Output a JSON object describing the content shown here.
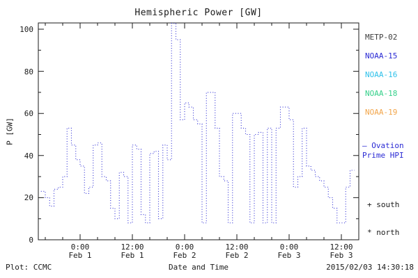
{
  "window": {
    "background": "#ffffff"
  },
  "chart": {
    "title": "Hemispheric Power [GW]",
    "ylabel": "P [GW]",
    "xlabel": "Date and Time",
    "footer_left": "Plot: CCMC",
    "footer_right": "2015/02/03 14:30:18"
  },
  "legend": {
    "items": [
      {
        "label": "METP-02",
        "color": "#3d3d3d"
      },
      {
        "label": "NOAA-15",
        "color": "#2a2ad4"
      },
      {
        "label": "NOAA-16",
        "color": "#2fc1ea"
      },
      {
        "label": "NOAA-18",
        "color": "#35d08a"
      },
      {
        "label": "NOAA-19",
        "color": "#f2a54a"
      }
    ],
    "ovation": {
      "sample": "—",
      "line1": "Ovation",
      "line2": "Prime HPI",
      "color": "#2a2ad4"
    },
    "markers": [
      {
        "symbol": "+",
        "label": "south"
      },
      {
        "symbol": "*",
        "label": "north"
      }
    ]
  },
  "chart_data": {
    "type": "line",
    "style": "step-dotted",
    "series_name": "Ovation Prime HPI",
    "line_color": "#2a2ad4",
    "title": "Hemispheric Power [GW]",
    "xlabel": "Date and Time",
    "ylabel": "P [GW]",
    "x_unit": "hours from 2015-02-01 00:00",
    "x_range": [
      -9.6,
      64
    ],
    "ylim": [
      0,
      100
    ],
    "y_ticks": [
      0,
      20,
      40,
      60,
      80,
      100
    ],
    "x_ticks": [
      {
        "h": 0,
        "time": "0:00",
        "date": "Feb 1"
      },
      {
        "h": 12,
        "time": "12:00",
        "date": "Feb 1"
      },
      {
        "h": 24,
        "time": "0:00",
        "date": "Feb 2"
      },
      {
        "h": 36,
        "time": "12:00",
        "date": "Feb 2"
      },
      {
        "h": 48,
        "time": "0:00",
        "date": "Feb 3"
      },
      {
        "h": 60,
        "time": "12:00",
        "date": "Feb 3"
      }
    ],
    "x_hours": [
      -9,
      -8,
      -7,
      -6,
      -5,
      -4,
      -3,
      -2,
      -1,
      0,
      1,
      2,
      3,
      4,
      5,
      6,
      7,
      8,
      9,
      10,
      11,
      12,
      13,
      14,
      15,
      16,
      17,
      18,
      19,
      20,
      21,
      22,
      23,
      24,
      25,
      26,
      27,
      28,
      29,
      30,
      31,
      32,
      33,
      34,
      35,
      36,
      37,
      38,
      39,
      40,
      41,
      42,
      43,
      44,
      45,
      46,
      47,
      48,
      49,
      50,
      51,
      52,
      53,
      54,
      55,
      56,
      57,
      58,
      59,
      60,
      61,
      62
    ],
    "values": [
      23,
      20,
      16,
      24,
      25,
      30,
      53,
      45,
      38,
      35,
      22,
      25,
      45,
      46,
      30,
      28,
      15,
      10,
      32,
      30,
      8,
      45,
      43,
      12,
      8,
      41,
      42,
      10,
      45,
      38,
      104,
      95,
      57,
      65,
      63,
      57,
      55,
      8,
      70,
      70,
      53,
      30,
      28,
      8,
      60,
      60,
      53,
      50,
      8,
      50,
      51,
      8,
      53,
      8,
      53,
      63,
      63,
      57,
      25,
      30,
      53,
      35,
      33,
      30,
      28,
      25,
      20,
      15,
      8,
      8,
      25,
      33
    ]
  }
}
